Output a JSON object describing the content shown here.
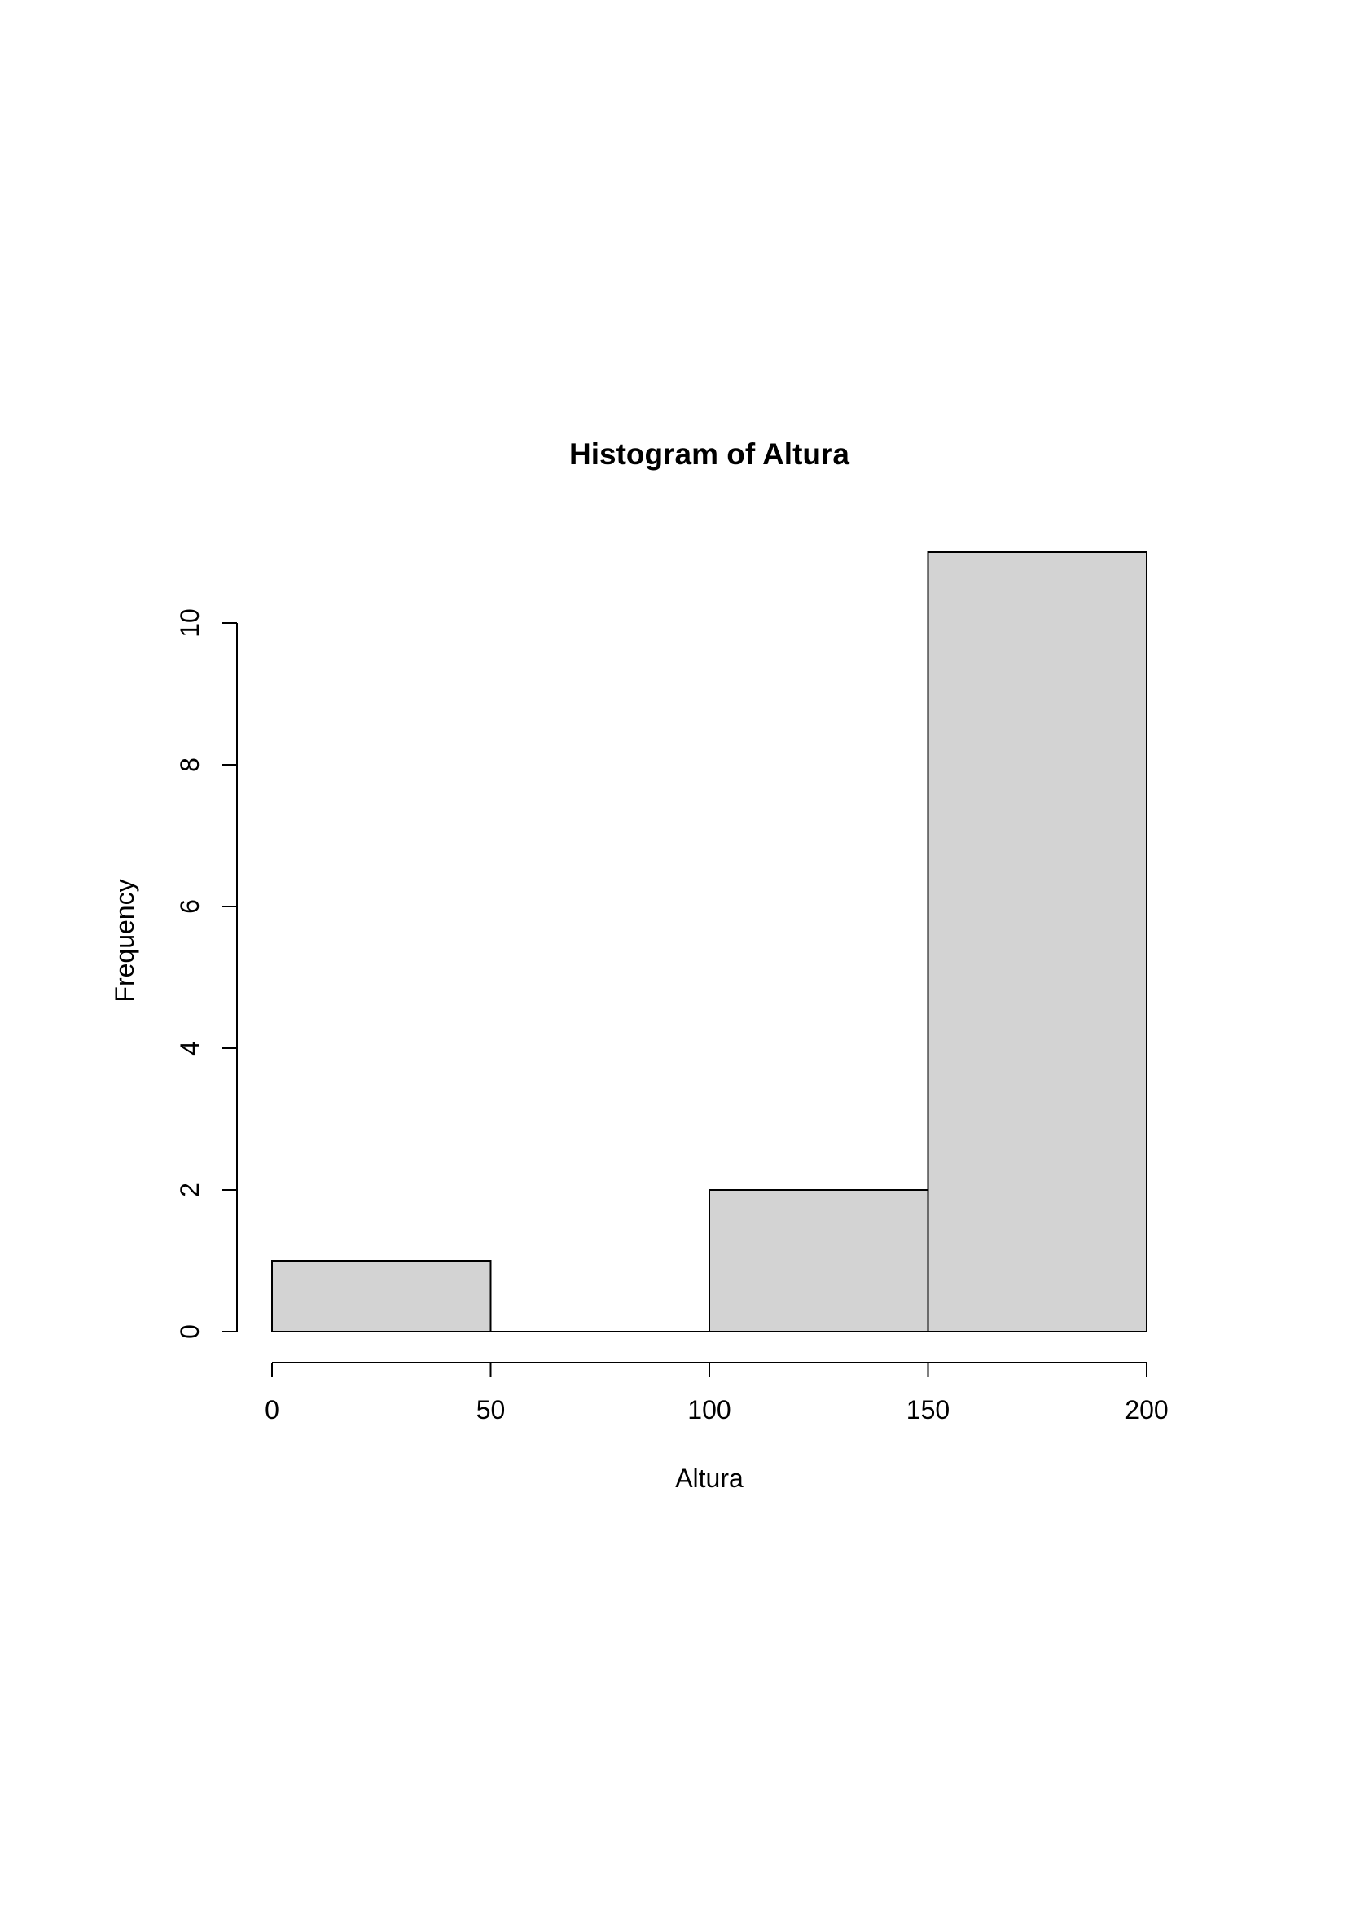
{
  "chart_data": {
    "type": "bar",
    "title": "Histogram of Altura",
    "xlabel": "Altura",
    "ylabel": "Frequency",
    "bins": [
      {
        "from": 0,
        "to": 50,
        "count": 1
      },
      {
        "from": 50,
        "to": 100,
        "count": 0
      },
      {
        "from": 100,
        "to": 150,
        "count": 2
      },
      {
        "from": 150,
        "to": 200,
        "count": 11
      }
    ],
    "x_ticks": [
      0,
      50,
      100,
      150,
      200
    ],
    "x_tick_labels": [
      "0",
      "50",
      "100",
      "150",
      "200"
    ],
    "y_ticks": [
      0,
      2,
      4,
      6,
      8,
      10
    ],
    "y_tick_labels": [
      "0",
      "2",
      "4",
      "6",
      "8",
      "10"
    ],
    "xlim": [
      0,
      200
    ],
    "ylim": [
      0,
      11
    ],
    "grid": false,
    "bar_fill": "#d3d3d3",
    "bar_stroke": "#000000"
  }
}
